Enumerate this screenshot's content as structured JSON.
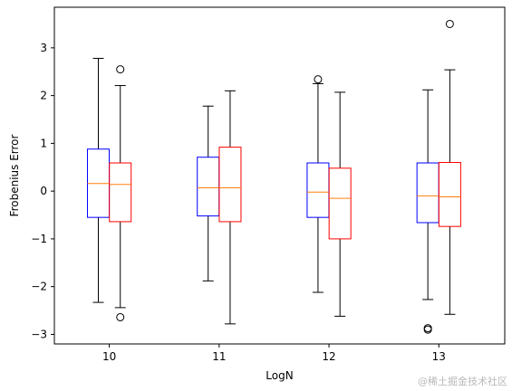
{
  "chart_data": {
    "type": "boxplot",
    "xlabel": "LogN",
    "ylabel": "Frobenius Error",
    "categories": [
      "10",
      "11",
      "12",
      "13"
    ],
    "ylim": [
      -3.2,
      3.85
    ],
    "xlim": [
      9.5,
      13.6
    ],
    "yticks": [
      -3,
      -2,
      -1,
      0,
      1,
      2,
      3
    ],
    "yticklabels": [
      "−3",
      "−2",
      "−1",
      "0",
      "1",
      "2",
      "3"
    ],
    "grid": false,
    "median_color": "#ff7f0e",
    "series": [
      {
        "color": "#0000ff",
        "boxes": [
          {
            "x": 9.9,
            "whislo": -2.33,
            "q1": -0.55,
            "med": 0.16,
            "q3": 0.88,
            "whishi": 2.78,
            "fliers": []
          },
          {
            "x": 10.9,
            "whislo": -1.88,
            "q1": -0.52,
            "med": 0.07,
            "q3": 0.71,
            "whishi": 1.78,
            "fliers": []
          },
          {
            "x": 11.9,
            "whislo": -2.12,
            "q1": -0.55,
            "med": -0.02,
            "q3": 0.59,
            "whishi": 2.25,
            "fliers": [
              2.34
            ]
          },
          {
            "x": 12.9,
            "whislo": -2.27,
            "q1": -0.66,
            "med": -0.1,
            "q3": 0.59,
            "whishi": 2.12,
            "fliers": [
              -2.87,
              -2.9
            ]
          }
        ]
      },
      {
        "color": "#ff0000",
        "boxes": [
          {
            "x": 10.1,
            "whislo": -2.44,
            "q1": -0.64,
            "med": 0.14,
            "q3": 0.59,
            "whishi": 2.21,
            "fliers": [
              2.55,
              -2.64
            ]
          },
          {
            "x": 11.1,
            "whislo": -2.78,
            "q1": -0.64,
            "med": 0.07,
            "q3": 0.92,
            "whishi": 2.1,
            "fliers": []
          },
          {
            "x": 12.1,
            "whislo": -2.62,
            "q1": -1.0,
            "med": -0.15,
            "q3": 0.48,
            "whishi": 2.07,
            "fliers": []
          },
          {
            "x": 13.1,
            "whislo": -2.58,
            "q1": -0.74,
            "med": -0.12,
            "q3": 0.6,
            "whishi": 2.54,
            "fliers": [
              3.5
            ]
          }
        ]
      }
    ]
  },
  "watermark": "@稀土掘金技术社区"
}
